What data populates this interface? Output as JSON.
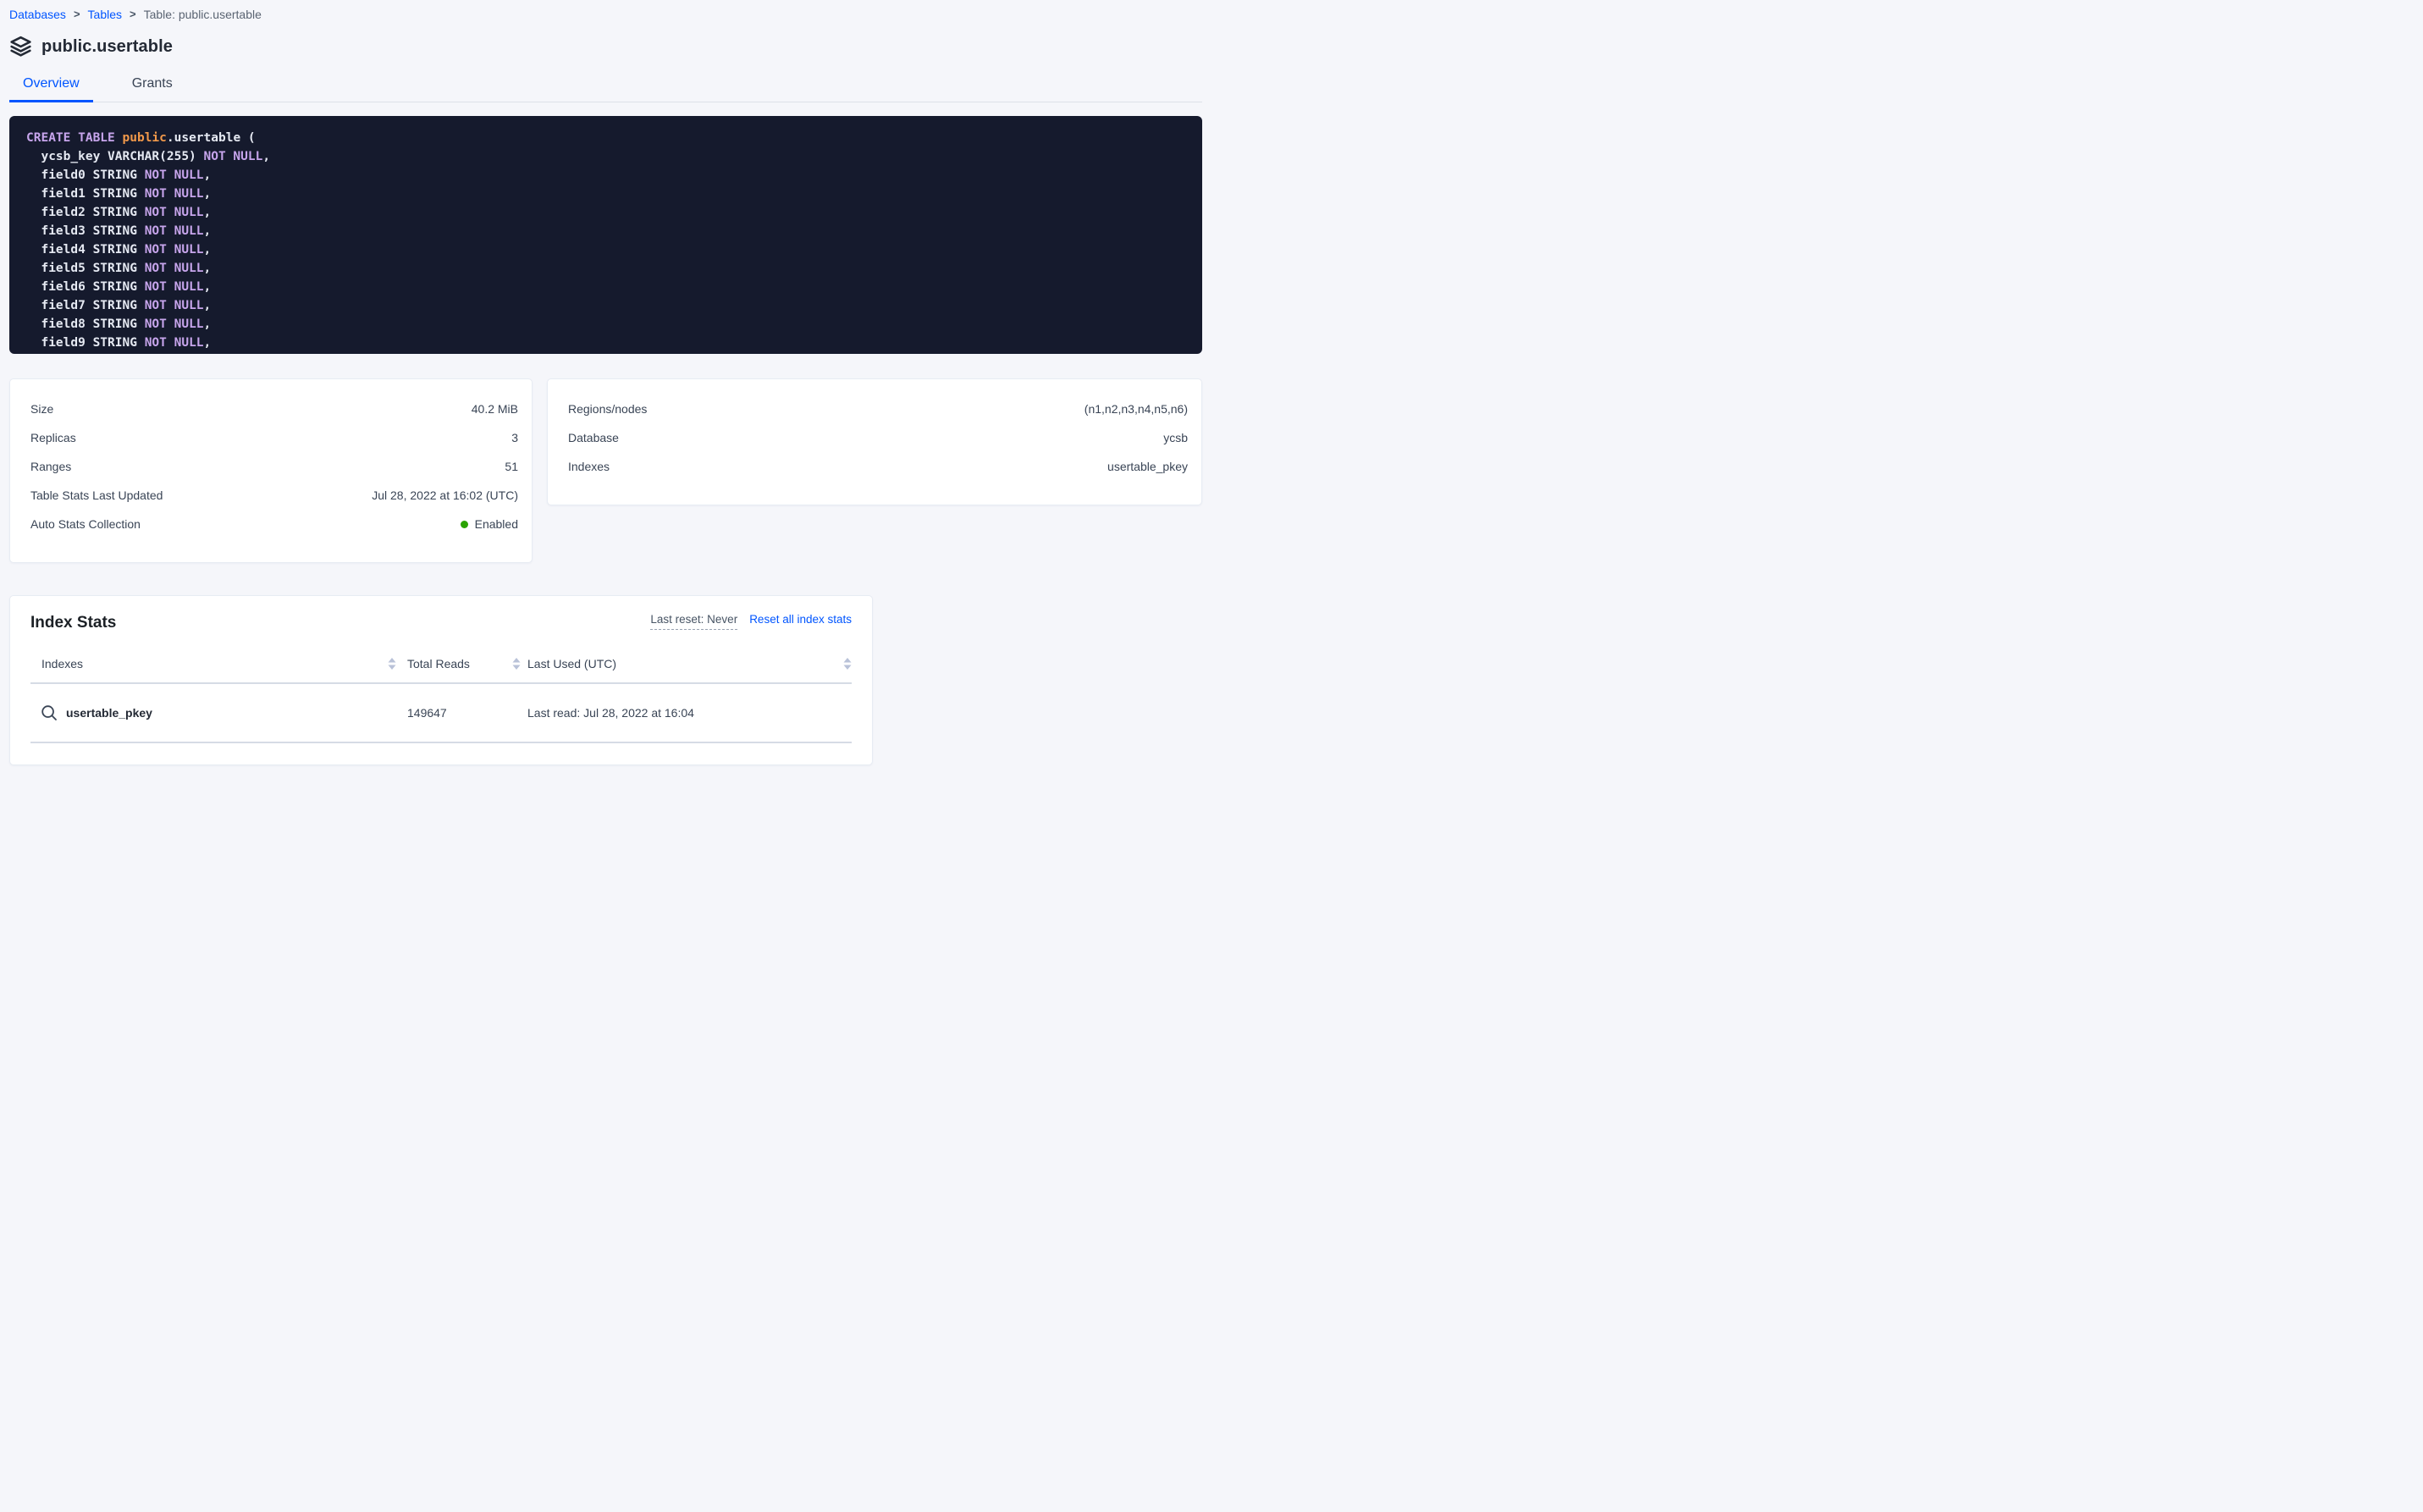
{
  "colors": {
    "accent_blue": "#0055ff",
    "status_green": "#2aa300",
    "code_background": "#151a2d",
    "code_keyword": "#c7a5ec",
    "code_schema": "#f2994a",
    "code_plain": "#e5e9f2"
  },
  "breadcrumb": {
    "separator": ">",
    "items": [
      "Databases",
      "Tables",
      "Table: public.usertable"
    ]
  },
  "header": {
    "title": "public.usertable",
    "icon": "layers-icon"
  },
  "tabs": [
    {
      "label": "Overview",
      "active": true
    },
    {
      "label": "Grants",
      "active": false
    }
  ],
  "sql": {
    "lines": [
      [
        {
          "t": "kw",
          "s": "CREATE TABLE "
        },
        {
          "t": "fn",
          "s": "public"
        },
        {
          "t": "pl",
          "s": ".usertable ("
        }
      ],
      [
        {
          "t": "pl",
          "s": "  ycsb_key VARCHAR(255) "
        },
        {
          "t": "kw",
          "s": "NOT NULL"
        },
        {
          "t": "pl",
          "s": ","
        }
      ],
      [
        {
          "t": "pl",
          "s": "  field0 STRING "
        },
        {
          "t": "kw",
          "s": "NOT NULL"
        },
        {
          "t": "pl",
          "s": ","
        }
      ],
      [
        {
          "t": "pl",
          "s": "  field1 STRING "
        },
        {
          "t": "kw",
          "s": "NOT NULL"
        },
        {
          "t": "pl",
          "s": ","
        }
      ],
      [
        {
          "t": "pl",
          "s": "  field2 STRING "
        },
        {
          "t": "kw",
          "s": "NOT NULL"
        },
        {
          "t": "pl",
          "s": ","
        }
      ],
      [
        {
          "t": "pl",
          "s": "  field3 STRING "
        },
        {
          "t": "kw",
          "s": "NOT NULL"
        },
        {
          "t": "pl",
          "s": ","
        }
      ],
      [
        {
          "t": "pl",
          "s": "  field4 STRING "
        },
        {
          "t": "kw",
          "s": "NOT NULL"
        },
        {
          "t": "pl",
          "s": ","
        }
      ],
      [
        {
          "t": "pl",
          "s": "  field5 STRING "
        },
        {
          "t": "kw",
          "s": "NOT NULL"
        },
        {
          "t": "pl",
          "s": ","
        }
      ],
      [
        {
          "t": "pl",
          "s": "  field6 STRING "
        },
        {
          "t": "kw",
          "s": "NOT NULL"
        },
        {
          "t": "pl",
          "s": ","
        }
      ],
      [
        {
          "t": "pl",
          "s": "  field7 STRING "
        },
        {
          "t": "kw",
          "s": "NOT NULL"
        },
        {
          "t": "pl",
          "s": ","
        }
      ],
      [
        {
          "t": "pl",
          "s": "  field8 STRING "
        },
        {
          "t": "kw",
          "s": "NOT NULL"
        },
        {
          "t": "pl",
          "s": ","
        }
      ],
      [
        {
          "t": "pl",
          "s": "  field9 STRING "
        },
        {
          "t": "kw",
          "s": "NOT NULL"
        },
        {
          "t": "pl",
          "s": ","
        }
      ]
    ]
  },
  "table_details": {
    "rows": [
      {
        "label": "Size",
        "value": "40.2 MiB"
      },
      {
        "label": "Replicas",
        "value": "3"
      },
      {
        "label": "Ranges",
        "value": "51"
      },
      {
        "label": "Table Stats Last Updated",
        "value": "Jul 28, 2022 at 16:02 (UTC)"
      },
      {
        "label": "Auto Stats Collection",
        "value": "Enabled",
        "status": "green"
      }
    ]
  },
  "database_details": {
    "rows": [
      {
        "label": "Regions/nodes",
        "value": "(n1,n2,n3,n4,n5,n6)"
      },
      {
        "label": "Database",
        "value": "ycsb"
      },
      {
        "label": "Indexes",
        "value": "usertable_pkey"
      }
    ]
  },
  "index_stats": {
    "title": "Index Stats",
    "last_reset_label": "Last reset: Never",
    "reset_link_label": "Reset all index stats",
    "columns": [
      "Indexes",
      "Total Reads",
      "Last Used (UTC)"
    ],
    "rows": [
      {
        "name": "usertable_pkey",
        "total_reads": "149647",
        "last_used": "Last read: Jul 28, 2022 at 16:04"
      }
    ]
  }
}
